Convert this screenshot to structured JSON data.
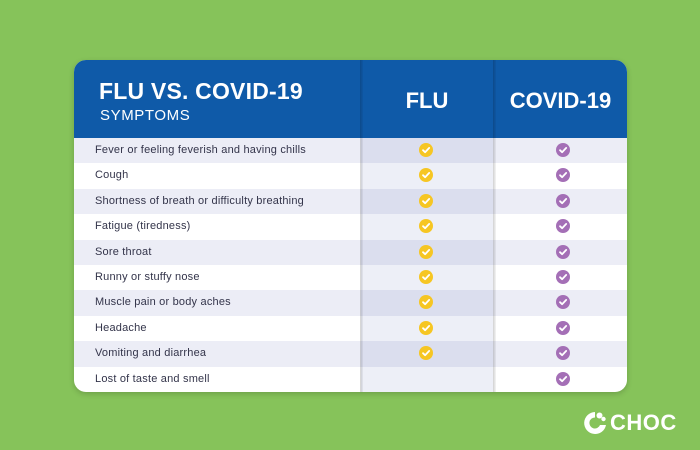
{
  "header": {
    "title": "FLU VS. COVID-19",
    "subtitle": "SYMPTOMS",
    "col_flu": "FLU",
    "col_covid": "COVID-19"
  },
  "symptoms": [
    {
      "label": "Fever or feeling feverish and having chills",
      "flu": true,
      "covid": true
    },
    {
      "label": "Cough",
      "flu": true,
      "covid": true
    },
    {
      "label": "Shortness of breath or difficulty breathing",
      "flu": true,
      "covid": true
    },
    {
      "label": "Fatigue (tiredness)",
      "flu": true,
      "covid": true
    },
    {
      "label": "Sore throat",
      "flu": true,
      "covid": true
    },
    {
      "label": "Runny or stuffy nose",
      "flu": true,
      "covid": true
    },
    {
      "label": "Muscle pain or body aches",
      "flu": true,
      "covid": true
    },
    {
      "label": "Headache",
      "flu": true,
      "covid": true
    },
    {
      "label": "Vomiting and diarrhea",
      "flu": true,
      "covid": true
    },
    {
      "label": "Lost of taste and smell",
      "flu": false,
      "covid": true
    }
  ],
  "colors": {
    "background": "#86c35a",
    "header": "#0f5aa8",
    "flu_check": "#f6c623",
    "covid_check": "#a46fb6"
  },
  "icons": {
    "flu_check": "check-circle-icon",
    "covid_check": "check-circle-icon",
    "logo": "choc-logo-icon"
  },
  "logo": {
    "text": "CHOC"
  }
}
